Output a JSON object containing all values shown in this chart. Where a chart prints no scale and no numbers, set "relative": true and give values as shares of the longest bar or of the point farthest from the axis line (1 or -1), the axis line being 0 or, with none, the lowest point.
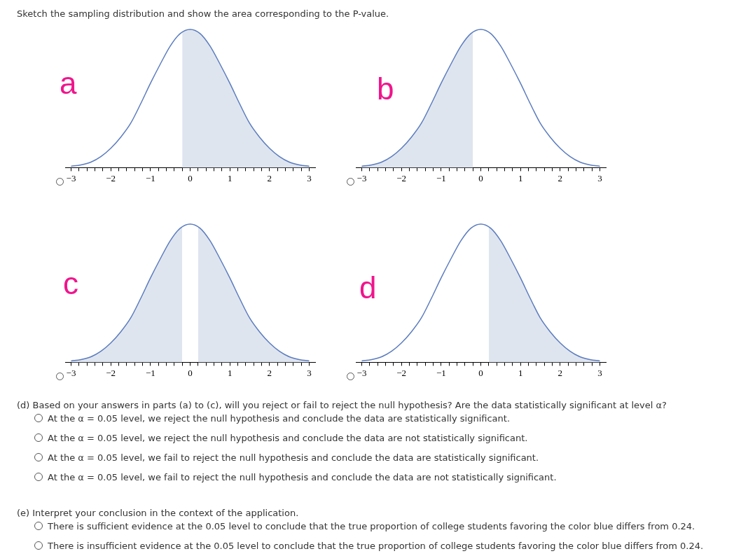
{
  "chart_data": [
    {
      "type": "other",
      "title": "Sketch the sampling distribution and show the area corresponding to the P-value."
    },
    {
      "type": "line",
      "title": "a",
      "relative": true,
      "marker": "none",
      "xlim": [
        -3.15,
        3.15
      ],
      "xticks": [
        {
          "value": -3,
          "label": "−3"
        },
        {
          "value": -2.8,
          "label": null
        },
        {
          "value": -2.6,
          "label": null
        },
        {
          "value": -2.4,
          "label": null
        },
        {
          "value": -2.2,
          "label": null
        },
        {
          "value": -2,
          "label": "−2"
        },
        {
          "value": -1.8,
          "label": null
        },
        {
          "value": -1.6,
          "label": null
        },
        {
          "value": -1.4,
          "label": null
        },
        {
          "value": -1.2,
          "label": null
        },
        {
          "value": -1,
          "label": "−1"
        },
        {
          "value": -0.8,
          "label": null
        },
        {
          "value": -0.6,
          "label": null
        },
        {
          "value": -0.4,
          "label": null
        },
        {
          "value": -0.2,
          "label": null
        },
        0,
        {
          "value": 0.2,
          "label": null
        },
        {
          "value": 0.4,
          "label": null
        },
        {
          "value": 0.6,
          "label": null
        },
        {
          "value": 0.8,
          "label": null
        },
        1,
        {
          "value": 1.2,
          "label": null
        },
        {
          "value": 1.4,
          "label": null
        },
        {
          "value": 1.6,
          "label": null
        },
        {
          "value": 1.8,
          "label": null
        },
        2,
        {
          "value": 2.2,
          "label": null
        },
        {
          "value": 2.4,
          "label": null
        },
        {
          "value": 2.6,
          "label": null
        },
        {
          "value": 2.8,
          "label": null
        },
        3
      ],
      "series": [
        {
          "type": "area",
          "color": "#dfe5ef",
          "x": [
            -0.2,
            0,
            0.25,
            0.5,
            0.75,
            1,
            1.25,
            1.5,
            1.75,
            2,
            2.25,
            2.5,
            2.75,
            3
          ],
          "values": [
            0.98,
            1,
            0.97,
            0.88,
            0.75,
            0.61,
            0.46,
            0.32,
            0.22,
            0.14,
            0.08,
            0.04,
            0.02,
            0.01
          ]
        },
        {
          "type": "line",
          "color": "#5b7cbf",
          "x": [
            -3,
            -2.75,
            -2.5,
            -2.25,
            -2,
            -1.75,
            -1.5,
            -1.25,
            -1,
            -0.75,
            -0.5,
            -0.25,
            0,
            0.25,
            0.5,
            0.75,
            1,
            1.25,
            1.5,
            1.75,
            2,
            2.25,
            2.5,
            2.75,
            3
          ],
          "values": [
            0.01,
            0.02,
            0.04,
            0.08,
            0.14,
            0.22,
            0.32,
            0.46,
            0.61,
            0.75,
            0.88,
            0.97,
            1,
            0.97,
            0.88,
            0.75,
            0.61,
            0.46,
            0.32,
            0.22,
            0.14,
            0.08,
            0.04,
            0.02,
            0.01
          ]
        }
      ]
    },
    {
      "type": "line",
      "title": "b",
      "relative": true,
      "marker": "none",
      "xlim": [
        -3.15,
        3.15
      ],
      "xticks": [
        {
          "value": -3,
          "label": "−3"
        },
        {
          "value": -2.8,
          "label": null
        },
        {
          "value": -2.6,
          "label": null
        },
        {
          "value": -2.4,
          "label": null
        },
        {
          "value": -2.2,
          "label": null
        },
        {
          "value": -2,
          "label": "−2"
        },
        {
          "value": -1.8,
          "label": null
        },
        {
          "value": -1.6,
          "label": null
        },
        {
          "value": -1.4,
          "label": null
        },
        {
          "value": -1.2,
          "label": null
        },
        {
          "value": -1,
          "label": "−1"
        },
        {
          "value": -0.8,
          "label": null
        },
        {
          "value": -0.6,
          "label": null
        },
        {
          "value": -0.4,
          "label": null
        },
        {
          "value": -0.2,
          "label": null
        },
        0,
        {
          "value": 0.2,
          "label": null
        },
        {
          "value": 0.4,
          "label": null
        },
        {
          "value": 0.6,
          "label": null
        },
        {
          "value": 0.8,
          "label": null
        },
        1,
        {
          "value": 1.2,
          "label": null
        },
        {
          "value": 1.4,
          "label": null
        },
        {
          "value": 1.6,
          "label": null
        },
        {
          "value": 1.8,
          "label": null
        },
        2,
        {
          "value": 2.2,
          "label": null
        },
        {
          "value": 2.4,
          "label": null
        },
        {
          "value": 2.6,
          "label": null
        },
        {
          "value": 2.8,
          "label": null
        },
        3
      ],
      "series": [
        {
          "type": "area",
          "color": "#dfe5ef",
          "x": [
            -3,
            -2.75,
            -2.5,
            -2.25,
            -2,
            -1.75,
            -1.5,
            -1.25,
            -1,
            -0.75,
            -0.5,
            -0.25,
            -0.2
          ],
          "values": [
            0.01,
            0.02,
            0.04,
            0.08,
            0.14,
            0.22,
            0.32,
            0.46,
            0.61,
            0.75,
            0.88,
            0.97,
            0.98
          ]
        },
        {
          "type": "line",
          "color": "#5b7cbf",
          "x": [
            -3,
            -2.75,
            -2.5,
            -2.25,
            -2,
            -1.75,
            -1.5,
            -1.25,
            -1,
            -0.75,
            -0.5,
            -0.25,
            0,
            0.25,
            0.5,
            0.75,
            1,
            1.25,
            1.5,
            1.75,
            2,
            2.25,
            2.5,
            2.75,
            3
          ],
          "values": [
            0.01,
            0.02,
            0.04,
            0.08,
            0.14,
            0.22,
            0.32,
            0.46,
            0.61,
            0.75,
            0.88,
            0.97,
            1,
            0.97,
            0.88,
            0.75,
            0.61,
            0.46,
            0.32,
            0.22,
            0.14,
            0.08,
            0.04,
            0.02,
            0.01
          ]
        }
      ]
    },
    {
      "type": "line",
      "title": "c",
      "relative": true,
      "marker": "none",
      "xlim": [
        -3.15,
        3.15
      ],
      "xticks": [
        {
          "value": -3,
          "label": "−3"
        },
        {
          "value": -2.8,
          "label": null
        },
        {
          "value": -2.6,
          "label": null
        },
        {
          "value": -2.4,
          "label": null
        },
        {
          "value": -2.2,
          "label": null
        },
        {
          "value": -2,
          "label": "−2"
        },
        {
          "value": -1.8,
          "label": null
        },
        {
          "value": -1.6,
          "label": null
        },
        {
          "value": -1.4,
          "label": null
        },
        {
          "value": -1.2,
          "label": null
        },
        {
          "value": -1,
          "label": "−1"
        },
        {
          "value": -0.8,
          "label": null
        },
        {
          "value": -0.6,
          "label": null
        },
        {
          "value": -0.4,
          "label": null
        },
        {
          "value": -0.2,
          "label": null
        },
        0,
        {
          "value": 0.2,
          "label": null
        },
        {
          "value": 0.4,
          "label": null
        },
        {
          "value": 0.6,
          "label": null
        },
        {
          "value": 0.8,
          "label": null
        },
        1,
        {
          "value": 1.2,
          "label": null
        },
        {
          "value": 1.4,
          "label": null
        },
        {
          "value": 1.6,
          "label": null
        },
        {
          "value": 1.8,
          "label": null
        },
        2,
        {
          "value": 2.2,
          "label": null
        },
        {
          "value": 2.4,
          "label": null
        },
        {
          "value": 2.6,
          "label": null
        },
        {
          "value": 2.8,
          "label": null
        },
        3
      ],
      "series": [
        {
          "type": "area",
          "color": "#dfe5ef",
          "x": [
            -3,
            -2.75,
            -2.5,
            -2.25,
            -2,
            -1.75,
            -1.5,
            -1.25,
            -1,
            -0.75,
            -0.5,
            -0.25,
            -0.2
          ],
          "values": [
            0.01,
            0.02,
            0.04,
            0.08,
            0.14,
            0.22,
            0.32,
            0.46,
            0.61,
            0.75,
            0.88,
            0.97,
            0.98
          ]
        },
        {
          "type": "area",
          "color": "#dfe5ef",
          "x": [
            0.2,
            0.25,
            0.5,
            0.75,
            1,
            1.25,
            1.5,
            1.75,
            2,
            2.25,
            2.5,
            2.75,
            3
          ],
          "values": [
            0.98,
            0.97,
            0.88,
            0.75,
            0.61,
            0.46,
            0.32,
            0.22,
            0.14,
            0.08,
            0.04,
            0.02,
            0.01
          ]
        },
        {
          "type": "line",
          "color": "#5b7cbf",
          "x": [
            -3,
            -2.75,
            -2.5,
            -2.25,
            -2,
            -1.75,
            -1.5,
            -1.25,
            -1,
            -0.75,
            -0.5,
            -0.25,
            0,
            0.25,
            0.5,
            0.75,
            1,
            1.25,
            1.5,
            1.75,
            2,
            2.25,
            2.5,
            2.75,
            3
          ],
          "values": [
            0.01,
            0.02,
            0.04,
            0.08,
            0.14,
            0.22,
            0.32,
            0.46,
            0.61,
            0.75,
            0.88,
            0.97,
            1,
            0.97,
            0.88,
            0.75,
            0.61,
            0.46,
            0.32,
            0.22,
            0.14,
            0.08,
            0.04,
            0.02,
            0.01
          ]
        }
      ]
    },
    {
      "type": "line",
      "title": "d",
      "relative": true,
      "marker": "none",
      "xlim": [
        -3.15,
        3.15
      ],
      "xticks": [
        {
          "value": -3,
          "label": "−3"
        },
        {
          "value": -2.8,
          "label": null
        },
        {
          "value": -2.6,
          "label": null
        },
        {
          "value": -2.4,
          "label": null
        },
        {
          "value": -2.2,
          "label": null
        },
        {
          "value": -2,
          "label": "−2"
        },
        {
          "value": -1.8,
          "label": null
        },
        {
          "value": -1.6,
          "label": null
        },
        {
          "value": -1.4,
          "label": null
        },
        {
          "value": -1.2,
          "label": null
        },
        {
          "value": -1,
          "label": "−1"
        },
        {
          "value": -0.8,
          "label": null
        },
        {
          "value": -0.6,
          "label": null
        },
        {
          "value": -0.4,
          "label": null
        },
        {
          "value": -0.2,
          "label": null
        },
        0,
        {
          "value": 0.2,
          "label": null
        },
        {
          "value": 0.4,
          "label": null
        },
        {
          "value": 0.6,
          "label": null
        },
        {
          "value": 0.8,
          "label": null
        },
        1,
        {
          "value": 1.2,
          "label": null
        },
        {
          "value": 1.4,
          "label": null
        },
        {
          "value": 1.6,
          "label": null
        },
        {
          "value": 1.8,
          "label": null
        },
        2,
        {
          "value": 2.2,
          "label": null
        },
        {
          "value": 2.4,
          "label": null
        },
        {
          "value": 2.6,
          "label": null
        },
        {
          "value": 2.8,
          "label": null
        },
        3
      ],
      "series": [
        {
          "type": "area",
          "color": "#dfe5ef",
          "x": [
            0.2,
            0.25,
            0.5,
            0.75,
            1,
            1.25,
            1.5,
            1.75,
            2,
            2.25,
            2.5,
            2.75,
            3
          ],
          "values": [
            0.98,
            0.97,
            0.88,
            0.75,
            0.61,
            0.46,
            0.32,
            0.22,
            0.14,
            0.08,
            0.04,
            0.02,
            0.01
          ]
        },
        {
          "type": "line",
          "color": "#5b7cbf",
          "x": [
            -3,
            -2.75,
            -2.5,
            -2.25,
            -2,
            -1.75,
            -1.5,
            -1.25,
            -1,
            -0.75,
            -0.5,
            -0.25,
            0,
            0.25,
            0.5,
            0.75,
            1,
            1.25,
            1.5,
            1.75,
            2,
            2.25,
            2.5,
            2.75,
            3
          ],
          "values": [
            0.01,
            0.02,
            0.04,
            0.08,
            0.14,
            0.22,
            0.32,
            0.46,
            0.61,
            0.75,
            0.88,
            0.97,
            1,
            0.97,
            0.88,
            0.75,
            0.61,
            0.46,
            0.32,
            0.22,
            0.14,
            0.08,
            0.04,
            0.02,
            0.01
          ]
        }
      ]
    },
    {
      "type": "other",
      "title": "(d) Based on your answers in parts (a) to (c), will you reject or fail to reject the null hypothesis? Are the data statistically significant at level α?",
      "annotations": [
        "At the α = 0.05 level, we reject the null hypothesis and conclude the data are statistically significant.",
        "At the α = 0.05 level, we reject the null hypothesis and conclude the data are not statistically significant.",
        "At the α = 0.05 level, we fail to reject the null hypothesis and conclude the data are statistically significant.",
        "At the α = 0.05 level, we fail to reject the null hypothesis and conclude the data are not statistically significant."
      ]
    },
    {
      "type": "other",
      "title": "(e) Interpret your conclusion in the context of the application.",
      "annotations": [
        "There is sufficient evidence at the 0.05 level to conclude that the true proportion of college students favoring the color blue differs from 0.24.",
        "There is insufficient evidence at the 0.05 level to conclude that the true proportion of college students favoring the color blue differs from 0.24."
      ]
    }
  ]
}
